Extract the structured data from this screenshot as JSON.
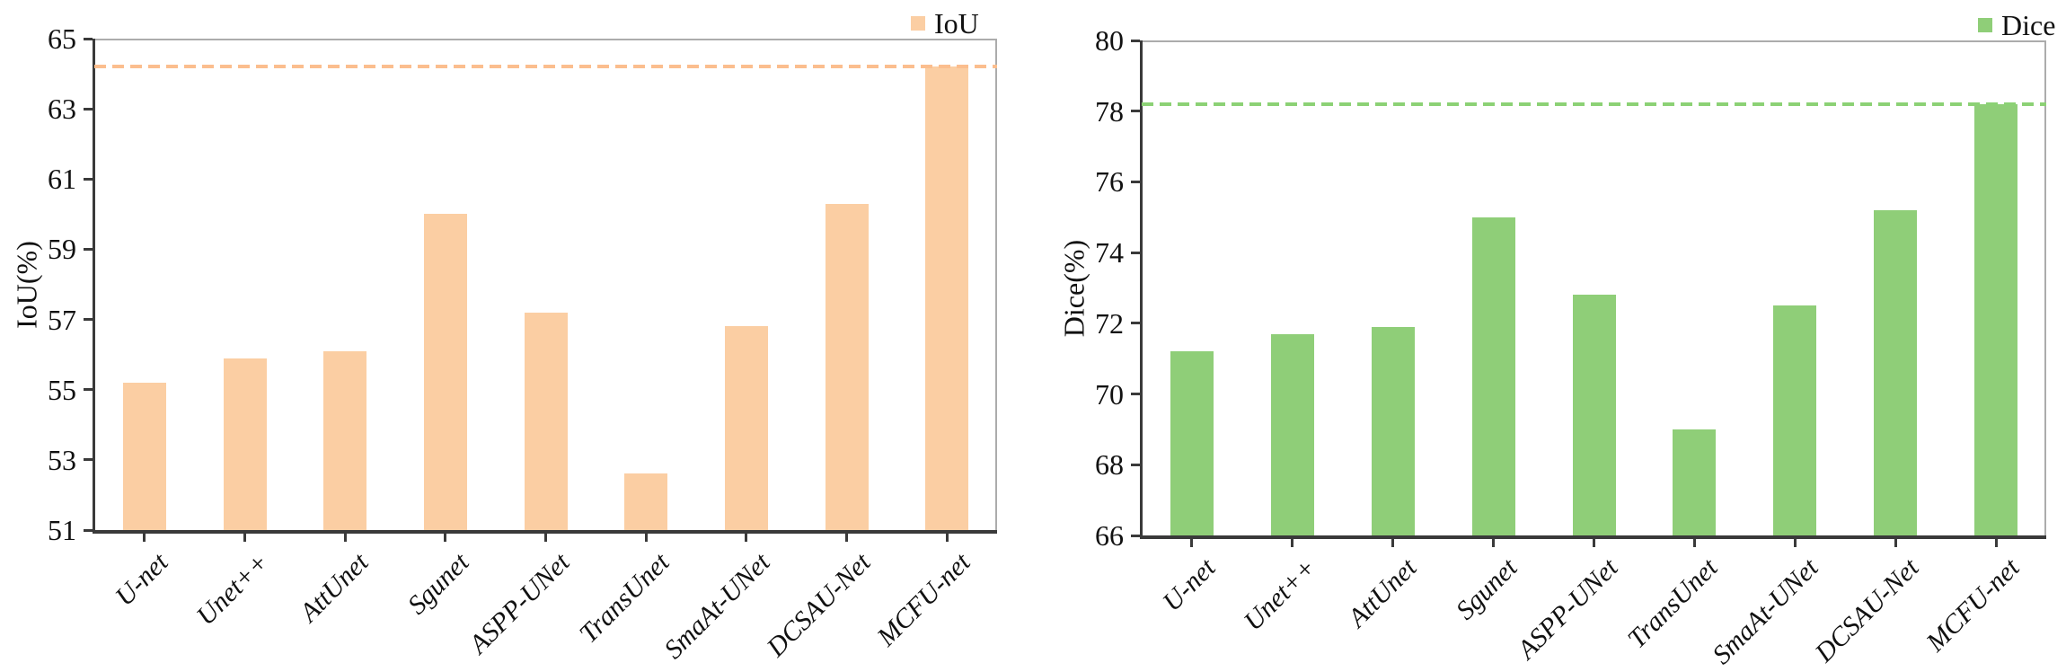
{
  "figure": {
    "background": "#ffffff",
    "axis_color": "#3a3a3a",
    "frame_color": "#acacac",
    "text_color": "#111111"
  },
  "chart_data": [
    {
      "type": "bar",
      "title": "",
      "xlabel": "",
      "ylabel": "IoU(%)",
      "legend": {
        "label": "IoU",
        "position": "top-right"
      },
      "categories": [
        "U-net",
        "Unet++",
        "AttUnet",
        "Sgunet",
        "ASPP-UNet",
        "TransUnet",
        "SmaAt-UNet",
        "DCSAU-Net",
        "MCFU-net"
      ],
      "values": [
        55.2,
        55.9,
        56.1,
        60.0,
        57.2,
        52.6,
        56.8,
        60.3,
        64.2
      ],
      "ylim": [
        51,
        65
      ],
      "yticks": [
        51,
        53,
        55,
        57,
        59,
        61,
        63,
        65
      ],
      "grid": false,
      "bar_color": "#fbcea3",
      "reference_line": {
        "value": 64.2,
        "style": "dashed",
        "color": "#fbbe8e"
      }
    },
    {
      "type": "bar",
      "title": "",
      "xlabel": "",
      "ylabel": "Dice(%)",
      "legend": {
        "label": "Dice",
        "position": "top-right"
      },
      "categories": [
        "U-net",
        "Unet++",
        "AttUnet",
        "Sgunet",
        "ASPP-UNet",
        "TransUnet",
        "SmaAt-UNet",
        "DCSAU-Net",
        "MCFU-net"
      ],
      "values": [
        71.2,
        71.7,
        71.9,
        75.0,
        72.8,
        69.0,
        72.5,
        75.2,
        78.2
      ],
      "ylim": [
        66,
        80
      ],
      "yticks": [
        66,
        68,
        70,
        72,
        74,
        76,
        78,
        80
      ],
      "grid": false,
      "bar_color": "#8fce78",
      "reference_line": {
        "value": 78.2,
        "style": "dashed",
        "color": "#8cd175"
      }
    }
  ]
}
